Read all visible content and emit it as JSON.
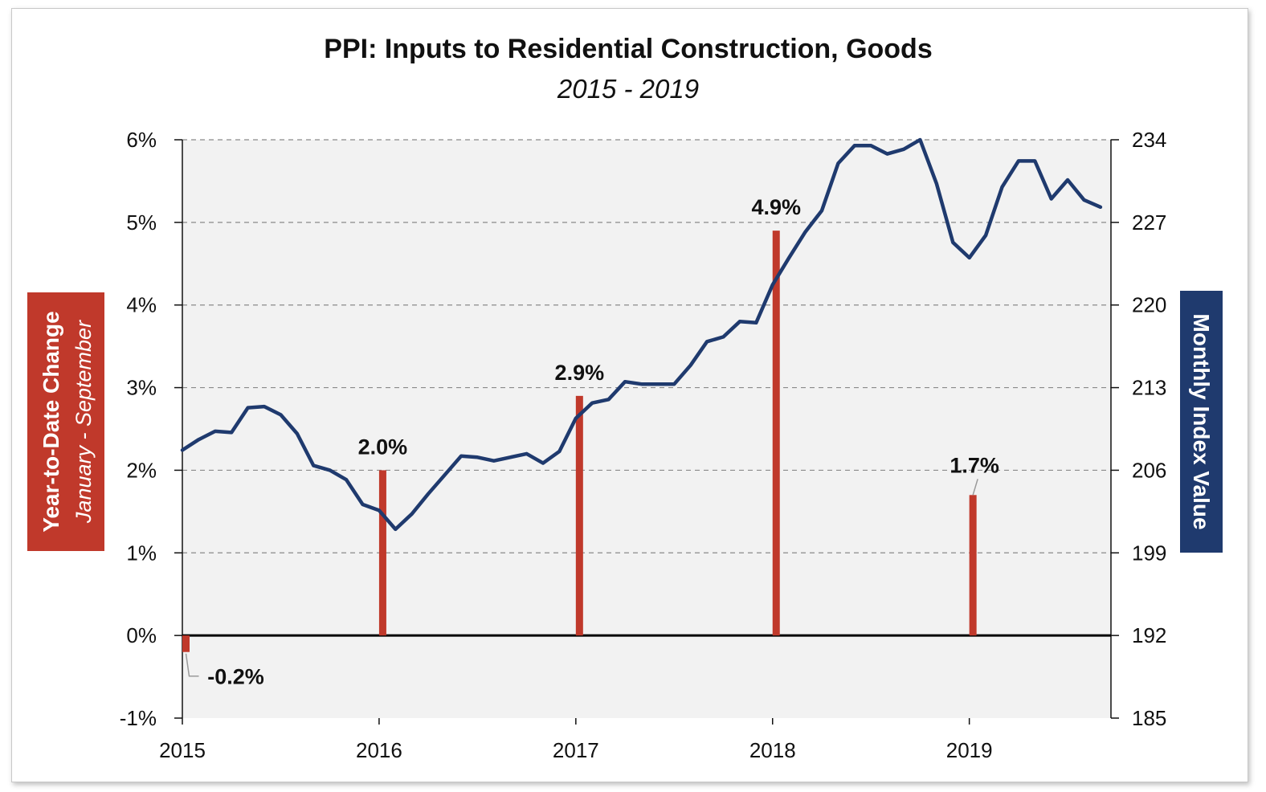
{
  "chart_data": {
    "type": "bar+line",
    "title": "PPI: Inputs to Residential Construction, Goods",
    "subtitle": "2015 - 2019",
    "colors": {
      "bars": "#c0392b",
      "line": "#1f3a6e",
      "left_axis_title_bg": "#c0392b",
      "right_axis_title_bg": "#1f3a6e",
      "plot_bg": "#f2f2f2"
    },
    "grid": true,
    "x_axis": {
      "ticks": [
        "2015",
        "2016",
        "2017",
        "2018",
        "2019"
      ],
      "range": [
        2015.0,
        2019.72
      ]
    },
    "left_axis": {
      "title": "Year-to-Date Change",
      "subtitle": "January - September",
      "ticks": [
        "6%",
        "5%",
        "4%",
        "3%",
        "2%",
        "1%",
        "0%",
        "-1%"
      ],
      "ylim": [
        -1,
        6
      ]
    },
    "right_axis": {
      "title": "Monthly Index Value",
      "ticks": [
        "234",
        "227",
        "220",
        "213",
        "206",
        "199",
        "192",
        "185"
      ],
      "ylim": [
        185,
        234
      ]
    },
    "bars": {
      "name": "Year-to-Date Change",
      "x": [
        2015,
        2016,
        2017,
        2018,
        2019
      ],
      "values": [
        -0.2,
        2.0,
        2.9,
        4.9,
        1.7
      ],
      "labels": [
        "-0.2%",
        "2.0%",
        "2.9%",
        "4.9%",
        "1.7%"
      ]
    },
    "line": {
      "name": "Monthly Index Value",
      "values": [
        207.7,
        208.6,
        209.3,
        209.2,
        211.3,
        211.4,
        210.7,
        209.1,
        206.4,
        206.0,
        205.2,
        203.1,
        202.6,
        201.0,
        202.3,
        204.0,
        205.6,
        207.2,
        207.1,
        206.8,
        207.1,
        207.4,
        206.6,
        207.6,
        210.4,
        211.7,
        212.0,
        213.5,
        213.3,
        213.3,
        213.3,
        214.9,
        216.9,
        217.3,
        218.6,
        218.5,
        221.7,
        224.0,
        226.2,
        228.0,
        232.0,
        233.5,
        233.5,
        232.8,
        233.2,
        234.0,
        230.3,
        225.3,
        224.0,
        225.9,
        230.0,
        232.2,
        232.2,
        229.0,
        230.6,
        228.9,
        228.3
      ]
    }
  }
}
